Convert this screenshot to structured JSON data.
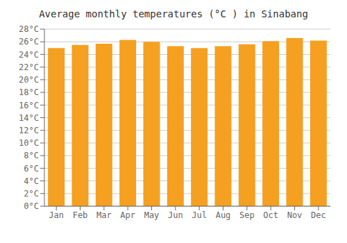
{
  "chart_data": {
    "type": "bar",
    "title": "Average monthly temperatures (°C ) in Sinabang",
    "categories": [
      "Jan",
      "Feb",
      "Mar",
      "Apr",
      "May",
      "Jun",
      "Jul",
      "Aug",
      "Sep",
      "Oct",
      "Nov",
      "Dec"
    ],
    "values": [
      25.0,
      25.5,
      25.7,
      26.3,
      26.0,
      25.3,
      25.0,
      25.3,
      25.6,
      26.1,
      26.6,
      26.2
    ],
    "color": "#F5A020",
    "ylim": [
      0,
      28
    ],
    "yticks": [
      {
        "value": 0,
        "label": "0°C"
      },
      {
        "value": 2,
        "label": "2°C"
      },
      {
        "value": 4,
        "label": "4°C"
      },
      {
        "value": 6,
        "label": "6°C"
      },
      {
        "value": 8,
        "label": "8°C"
      },
      {
        "value": 10,
        "label": "10°C"
      },
      {
        "value": 12,
        "label": "12°C"
      },
      {
        "value": 14,
        "label": "14°C"
      },
      {
        "value": 16,
        "label": "16°C"
      },
      {
        "value": 18,
        "label": "18°C"
      },
      {
        "value": 20,
        "label": "20°C"
      },
      {
        "value": 22,
        "label": "22°C"
      },
      {
        "value": 24,
        "label": "24°C"
      },
      {
        "value": 26,
        "label": "26°C"
      },
      {
        "value": 28,
        "label": "28°C"
      }
    ],
    "grid": true
  }
}
